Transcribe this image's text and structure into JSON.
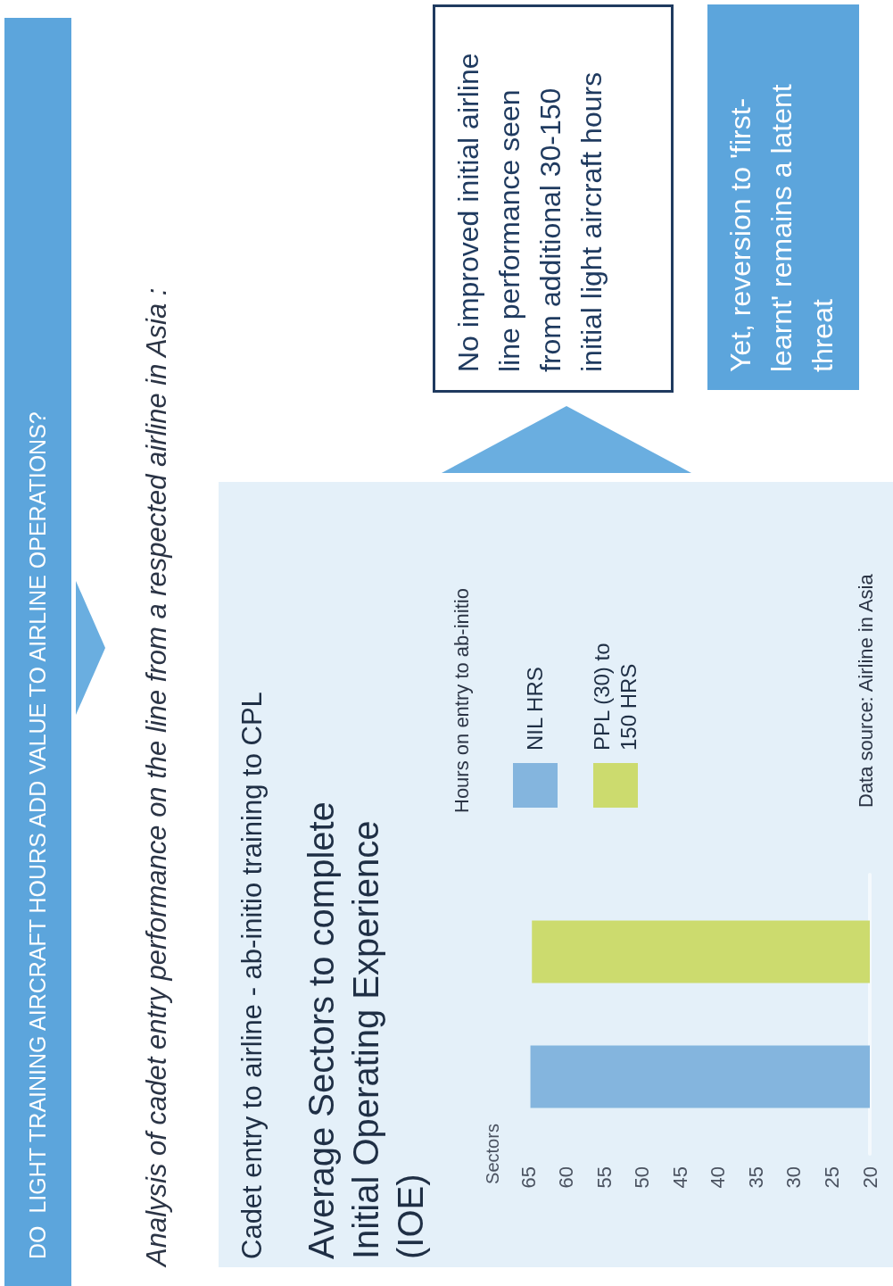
{
  "chart_data": {
    "type": "bar",
    "orientation": "horizontal",
    "title": "Average Sectors to complete Initial Operating Experience (IOE)",
    "subtitle": "Cadet entry to airline - ab-initio training to CPL",
    "ylabel": "Sectors",
    "legend_title": "Hours on entry to ab-initio",
    "legend": "top",
    "categories": [
      null
    ],
    "series": [
      {
        "name": "NIL HRS",
        "color": "#84b5de",
        "values": [
          64.7
        ]
      },
      {
        "name": "PPL (30) to 150 HRS",
        "color": "#ccdb6e",
        "values": [
          64.5
        ]
      }
    ],
    "xlim": [
      65,
      20
    ],
    "xticks": [
      65,
      60,
      55,
      50,
      45,
      40,
      35,
      30,
      25,
      20
    ],
    "annotations": [
      "DO  LIGHT TRAINING AIRCRAFT HOURS ADD VALUE TO AIRLINE OPERATIONS?",
      "Analysis of cadet entry performance on the line from a respected airline in Asia :",
      "No improved initial airline line performance seen from additional 30-150 initial light aircraft hours",
      "Yet, reversion to 'first-learnt' remains a latent threat",
      "Data source: Airline in Asia"
    ]
  }
}
